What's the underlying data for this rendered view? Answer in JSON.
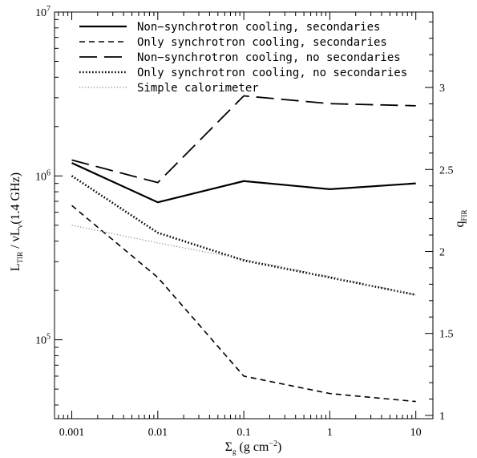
{
  "chart_data": {
    "type": "line",
    "xlabel": "Σg (g cm⁻²)",
    "ylabel": "LTIR / νLν(1.4 GHz)",
    "y2label": "qFIR",
    "xscale": "log",
    "yscale": "log",
    "xlim": [
      0.00063,
      15.8
    ],
    "ylim": [
      33000,
      10000000
    ],
    "y2lim": [
      0.98,
      3.46
    ],
    "grid": false,
    "legend_position": "top-left",
    "x": [
      0.001,
      0.01,
      0.1,
      1,
      10
    ],
    "x_ticks": [
      {
        "value": 0.001,
        "label": "0.001"
      },
      {
        "value": 0.01,
        "label": "0.01"
      },
      {
        "value": 0.1,
        "label": "0.1"
      },
      {
        "value": 1,
        "label": "1"
      },
      {
        "value": 10,
        "label": "10"
      }
    ],
    "y_ticks": [
      {
        "value": 100000,
        "base": "10",
        "exp": "5"
      },
      {
        "value": 1000000,
        "base": "10",
        "exp": "6"
      },
      {
        "value": 10000000,
        "base": "10",
        "exp": "7"
      }
    ],
    "y2_ticks": [
      {
        "value": 1,
        "label": "1"
      },
      {
        "value": 1.5,
        "label": "1.5"
      },
      {
        "value": 2,
        "label": "2"
      },
      {
        "value": 2.5,
        "label": "2.5"
      },
      {
        "value": 3,
        "label": "3"
      }
    ],
    "series": [
      {
        "name": "Non−synchrotron cooling, secondaries",
        "style": "solid",
        "color": "#000000",
        "values": [
          1200000,
          690000,
          930000,
          830000,
          900000
        ]
      },
      {
        "name": "Only synchrotron cooling, secondaries",
        "style": "dashed",
        "color": "#000000",
        "values": [
          660000,
          240000,
          60000,
          47000,
          42000
        ]
      },
      {
        "name": "Non−synchrotron cooling, no secondaries",
        "style": "longdash",
        "color": "#000000",
        "values": [
          1250000,
          910000,
          3080000,
          2760000,
          2680000
        ]
      },
      {
        "name": "Only synchrotron cooling, no secondaries",
        "style": "dotted",
        "color": "#000000",
        "values": [
          1000000,
          450000,
          305000,
          240000,
          188000
        ]
      },
      {
        "name": "Simple calorimeter",
        "style": "dotted-thin",
        "color": "#888888",
        "values": [
          500000,
          390000,
          310000,
          243000,
          188000
        ]
      }
    ]
  }
}
